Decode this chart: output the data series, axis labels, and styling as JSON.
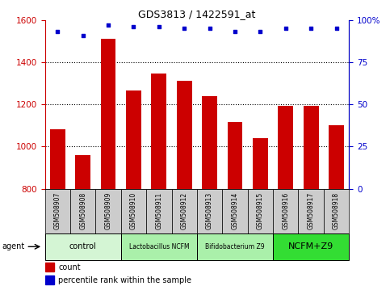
{
  "title": "GDS3813 / 1422591_at",
  "samples": [
    "GSM508907",
    "GSM508908",
    "GSM508909",
    "GSM508910",
    "GSM508911",
    "GSM508912",
    "GSM508913",
    "GSM508914",
    "GSM508915",
    "GSM508916",
    "GSM508917",
    "GSM508918"
  ],
  "counts": [
    1083,
    960,
    1510,
    1265,
    1345,
    1310,
    1240,
    1115,
    1040,
    1195,
    1195,
    1100
  ],
  "percentile_ranks": [
    93,
    91,
    97,
    96,
    96,
    95,
    95,
    93,
    93,
    95,
    95,
    95
  ],
  "ylim_left": [
    800,
    1600
  ],
  "ylim_right": [
    0,
    100
  ],
  "yticks_left": [
    800,
    1000,
    1200,
    1400,
    1600
  ],
  "yticks_right": [
    0,
    25,
    50,
    75,
    100
  ],
  "bar_color": "#cc0000",
  "dot_color": "#0000cc",
  "bg_color": "#ffffff",
  "agent_groups": [
    {
      "label": "control",
      "start": 0,
      "end": 2,
      "color": "#d4f5d4"
    },
    {
      "label": "Lactobacillus NCFM",
      "start": 3,
      "end": 5,
      "color": "#aaf0aa"
    },
    {
      "label": "Bifidobacterium Z9",
      "start": 6,
      "end": 8,
      "color": "#aaf0aa"
    },
    {
      "label": "NCFM+Z9",
      "start": 9,
      "end": 11,
      "color": "#33dd33"
    }
  ],
  "xlabel_bg_color": "#cccccc",
  "legend_count_color": "#cc0000",
  "legend_dot_color": "#0000cc",
  "agent_label_fontsize": 7,
  "sample_fontsize": 5.5,
  "yticklabel_fontsize": 7.5,
  "grid_yticks": [
    1000,
    1200,
    1400
  ]
}
